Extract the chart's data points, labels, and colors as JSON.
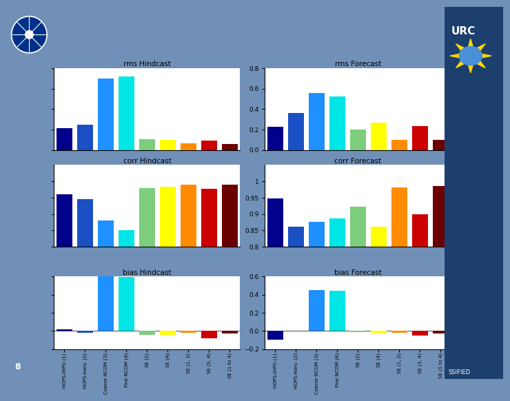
{
  "categories": [
    "HOPS-IHPO (1)",
    "HOPS-Harv. (2)",
    "Coarse NCOM (3)",
    "Fine NCOM (4)",
    "SE (2)",
    "SE (4)",
    "SE (1, 2)",
    "SE (3, 4)",
    "SE (1 to 4)"
  ],
  "colors": [
    "#00008B",
    "#1B4FC4",
    "#1E90FF",
    "#00E5E5",
    "#7CCD7C",
    "#FFFF00",
    "#FF8C00",
    "#CC0000",
    "#6B0000"
  ],
  "rms_hindcast": [
    0.21,
    0.245,
    0.7,
    0.715,
    0.105,
    0.1,
    0.065,
    0.09,
    0.06
  ],
  "rms_forecast": [
    0.225,
    0.36,
    0.555,
    0.525,
    0.2,
    0.265,
    0.1,
    0.235,
    0.1
  ],
  "corr_hindcast": [
    0.96,
    0.945,
    0.88,
    0.85,
    0.978,
    0.984,
    0.99,
    0.977,
    0.99
  ],
  "corr_forecast": [
    0.948,
    0.862,
    0.875,
    0.886,
    0.922,
    0.862,
    0.982,
    0.898,
    0.985
  ],
  "bias_hindcast": [
    0.02,
    -0.02,
    0.6,
    0.595,
    -0.04,
    -0.04,
    -0.02,
    -0.08,
    -0.03
  ],
  "bias_forecast": [
    -0.1,
    0.0,
    0.45,
    0.445,
    -0.01,
    -0.03,
    -0.02,
    -0.05,
    -0.03
  ],
  "rms_ylim": [
    0,
    0.8
  ],
  "corr_ylim": [
    0.8,
    1.05
  ],
  "bias_ylim": [
    -0.2,
    0.6
  ],
  "rms_yticks": [
    0,
    0.2,
    0.4,
    0.6,
    0.8
  ],
  "corr_yticks": [
    0.8,
    0.85,
    0.9,
    0.95,
    1.0
  ],
  "bias_yticks": [
    -0.2,
    0,
    0.2,
    0.4,
    0.6
  ],
  "bg_color": "#7090B8",
  "sidebar_color": "#1C3F6E",
  "plot_titles": [
    [
      "rms Hindcast",
      "rms Forecast"
    ],
    [
      "corr Hindcast",
      "corr Forecast"
    ],
    [
      "bias Hindcast",
      "bias Forecast"
    ]
  ],
  "fig_label": "8",
  "classified_label": "SSIFIED"
}
